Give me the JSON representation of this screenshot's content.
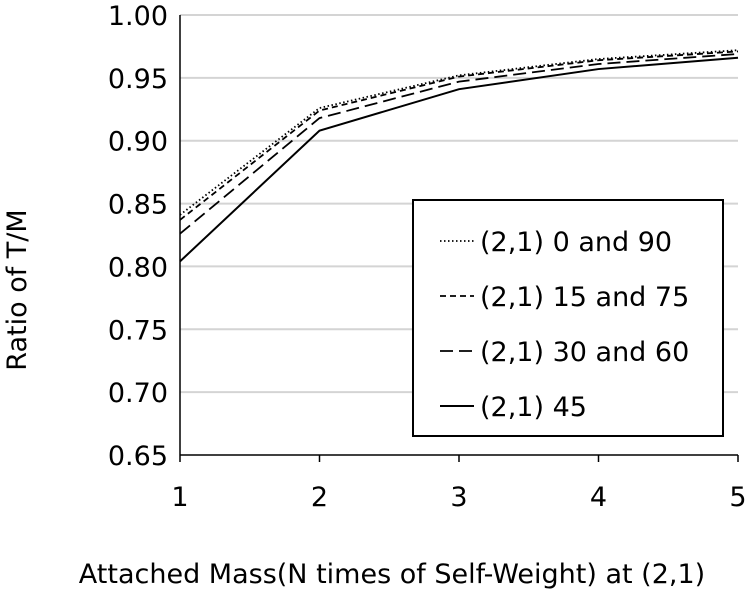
{
  "chart_data": {
    "type": "line",
    "title": "",
    "xlabel": "Attached Mass(N times of Self-Weight) at (2,1)",
    "ylabel": "Ratio of  T/M",
    "x": [
      1,
      2,
      3,
      4,
      5
    ],
    "xlim": [
      1,
      5
    ],
    "ylim": [
      0.65,
      1.0
    ],
    "x_ticks": [
      "1",
      "2",
      "3",
      "4",
      "5"
    ],
    "y_ticks": [
      "0.65",
      "0.70",
      "0.75",
      "0.80",
      "0.85",
      "0.90",
      "0.95",
      "1.00"
    ],
    "grid": "horizontal",
    "legend_position": "bottom-right",
    "series": [
      {
        "name": "(2,1) 0 and 90",
        "style": "dotted",
        "values": [
          0.841,
          0.926,
          0.952,
          0.965,
          0.972
        ]
      },
      {
        "name": "(2,1) 15 and 75",
        "style": "short-dash",
        "values": [
          0.837,
          0.924,
          0.951,
          0.964,
          0.971
        ]
      },
      {
        "name": "(2,1) 30 and 60",
        "style": "long-dash",
        "values": [
          0.826,
          0.918,
          0.947,
          0.961,
          0.969
        ]
      },
      {
        "name": "(2,1) 45",
        "style": "solid",
        "values": [
          0.804,
          0.908,
          0.941,
          0.957,
          0.966
        ]
      }
    ]
  }
}
